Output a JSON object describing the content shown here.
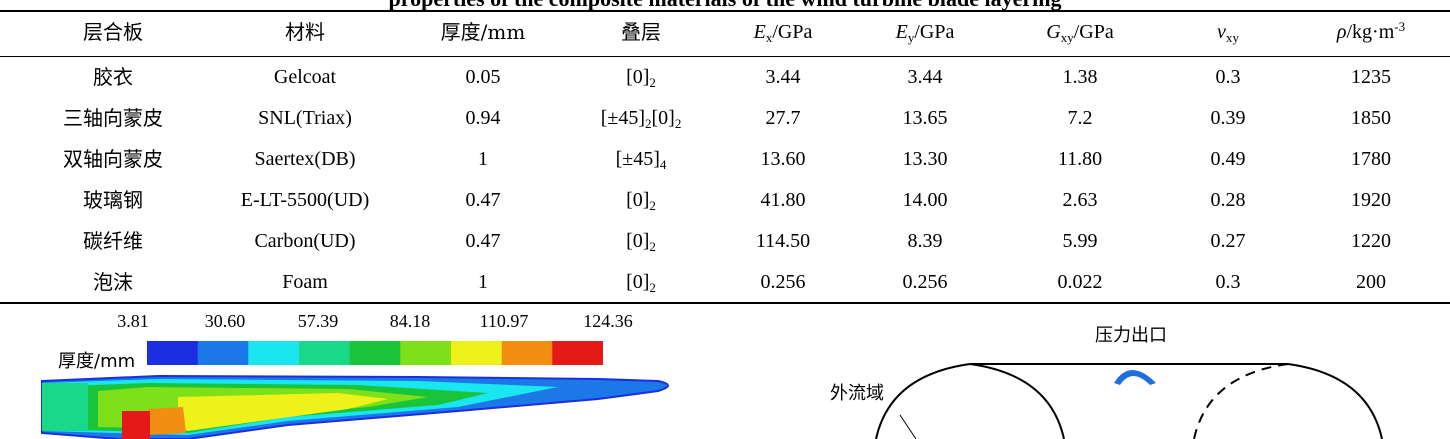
{
  "top_title": "properties of the composite materials of the wind turbine blade layering",
  "table": {
    "headers": [
      {
        "plain": "层合板"
      },
      {
        "plain": "材料"
      },
      {
        "plain": "厚度/mm"
      },
      {
        "plain": "叠层"
      },
      {
        "sym": "E",
        "sub": "x",
        "unit": "/GPa"
      },
      {
        "sym": "E",
        "sub": "y",
        "unit": "/GPa"
      },
      {
        "sym": "G",
        "sub": "xy",
        "unit": "/GPa"
      },
      {
        "sym": "ν",
        "sub": "xy",
        "unit": ""
      },
      {
        "sym": "ρ",
        "unit": "/kg·m",
        "sup": "-3"
      }
    ],
    "rows": [
      {
        "laminate": "胶衣",
        "material": "Gelcoat",
        "thickness": "0.05",
        "stack": {
          "main": "[0]",
          "sub": "2"
        },
        "ex": "3.44",
        "ey": "3.44",
        "gxy": "1.38",
        "nu": "0.3",
        "rho": "1235"
      },
      {
        "laminate": "三轴向蒙皮",
        "material": "SNL(Triax)",
        "thickness": "0.94",
        "stack": {
          "main": "[±45]",
          "sub": "2",
          "tail": "[0]",
          "tail_sub": "2"
        },
        "ex": "27.7",
        "ey": "13.65",
        "gxy": "7.2",
        "nu": "0.39",
        "rho": "1850"
      },
      {
        "laminate": "双轴向蒙皮",
        "material": "Saertex(DB)",
        "thickness": "1",
        "stack": {
          "main": "[±45]",
          "sub": "4"
        },
        "ex": "13.60",
        "ey": "13.30",
        "gxy": "11.80",
        "nu": "0.49",
        "rho": "1780"
      },
      {
        "laminate": "玻璃钢",
        "material": "E-LT-5500(UD)",
        "thickness": "0.47",
        "stack": {
          "main": "[0]",
          "sub": "2"
        },
        "ex": "41.80",
        "ey": "14.00",
        "gxy": "2.63",
        "nu": "0.28",
        "rho": "1920"
      },
      {
        "laminate": "碳纤维",
        "material": "Carbon(UD)",
        "thickness": "0.47",
        "stack": {
          "main": "[0]",
          "sub": "2"
        },
        "ex": "114.50",
        "ey": "8.39",
        "gxy": "5.99",
        "nu": "0.27",
        "rho": "1220"
      },
      {
        "laminate": "泡沫",
        "material": "Foam",
        "thickness": "1",
        "stack": {
          "main": "[0]",
          "sub": "2"
        },
        "ex": "0.256",
        "ey": "0.256",
        "gxy": "0.022",
        "nu": "0.3",
        "rho": "200"
      }
    ]
  },
  "figure_left": {
    "label": "厚度/mm",
    "ticks": [
      "3.81",
      "30.60",
      "57.39",
      "84.18",
      "110.97",
      "124.36"
    ],
    "colors": [
      "#1b2ee0",
      "#1b78e6",
      "#19e6ee",
      "#19d88a",
      "#19c43a",
      "#7ee019",
      "#eef21a",
      "#f28f12",
      "#e61919"
    ]
  },
  "figure_right": {
    "outlet_label": "压力出口",
    "domain_label": "外流域"
  }
}
